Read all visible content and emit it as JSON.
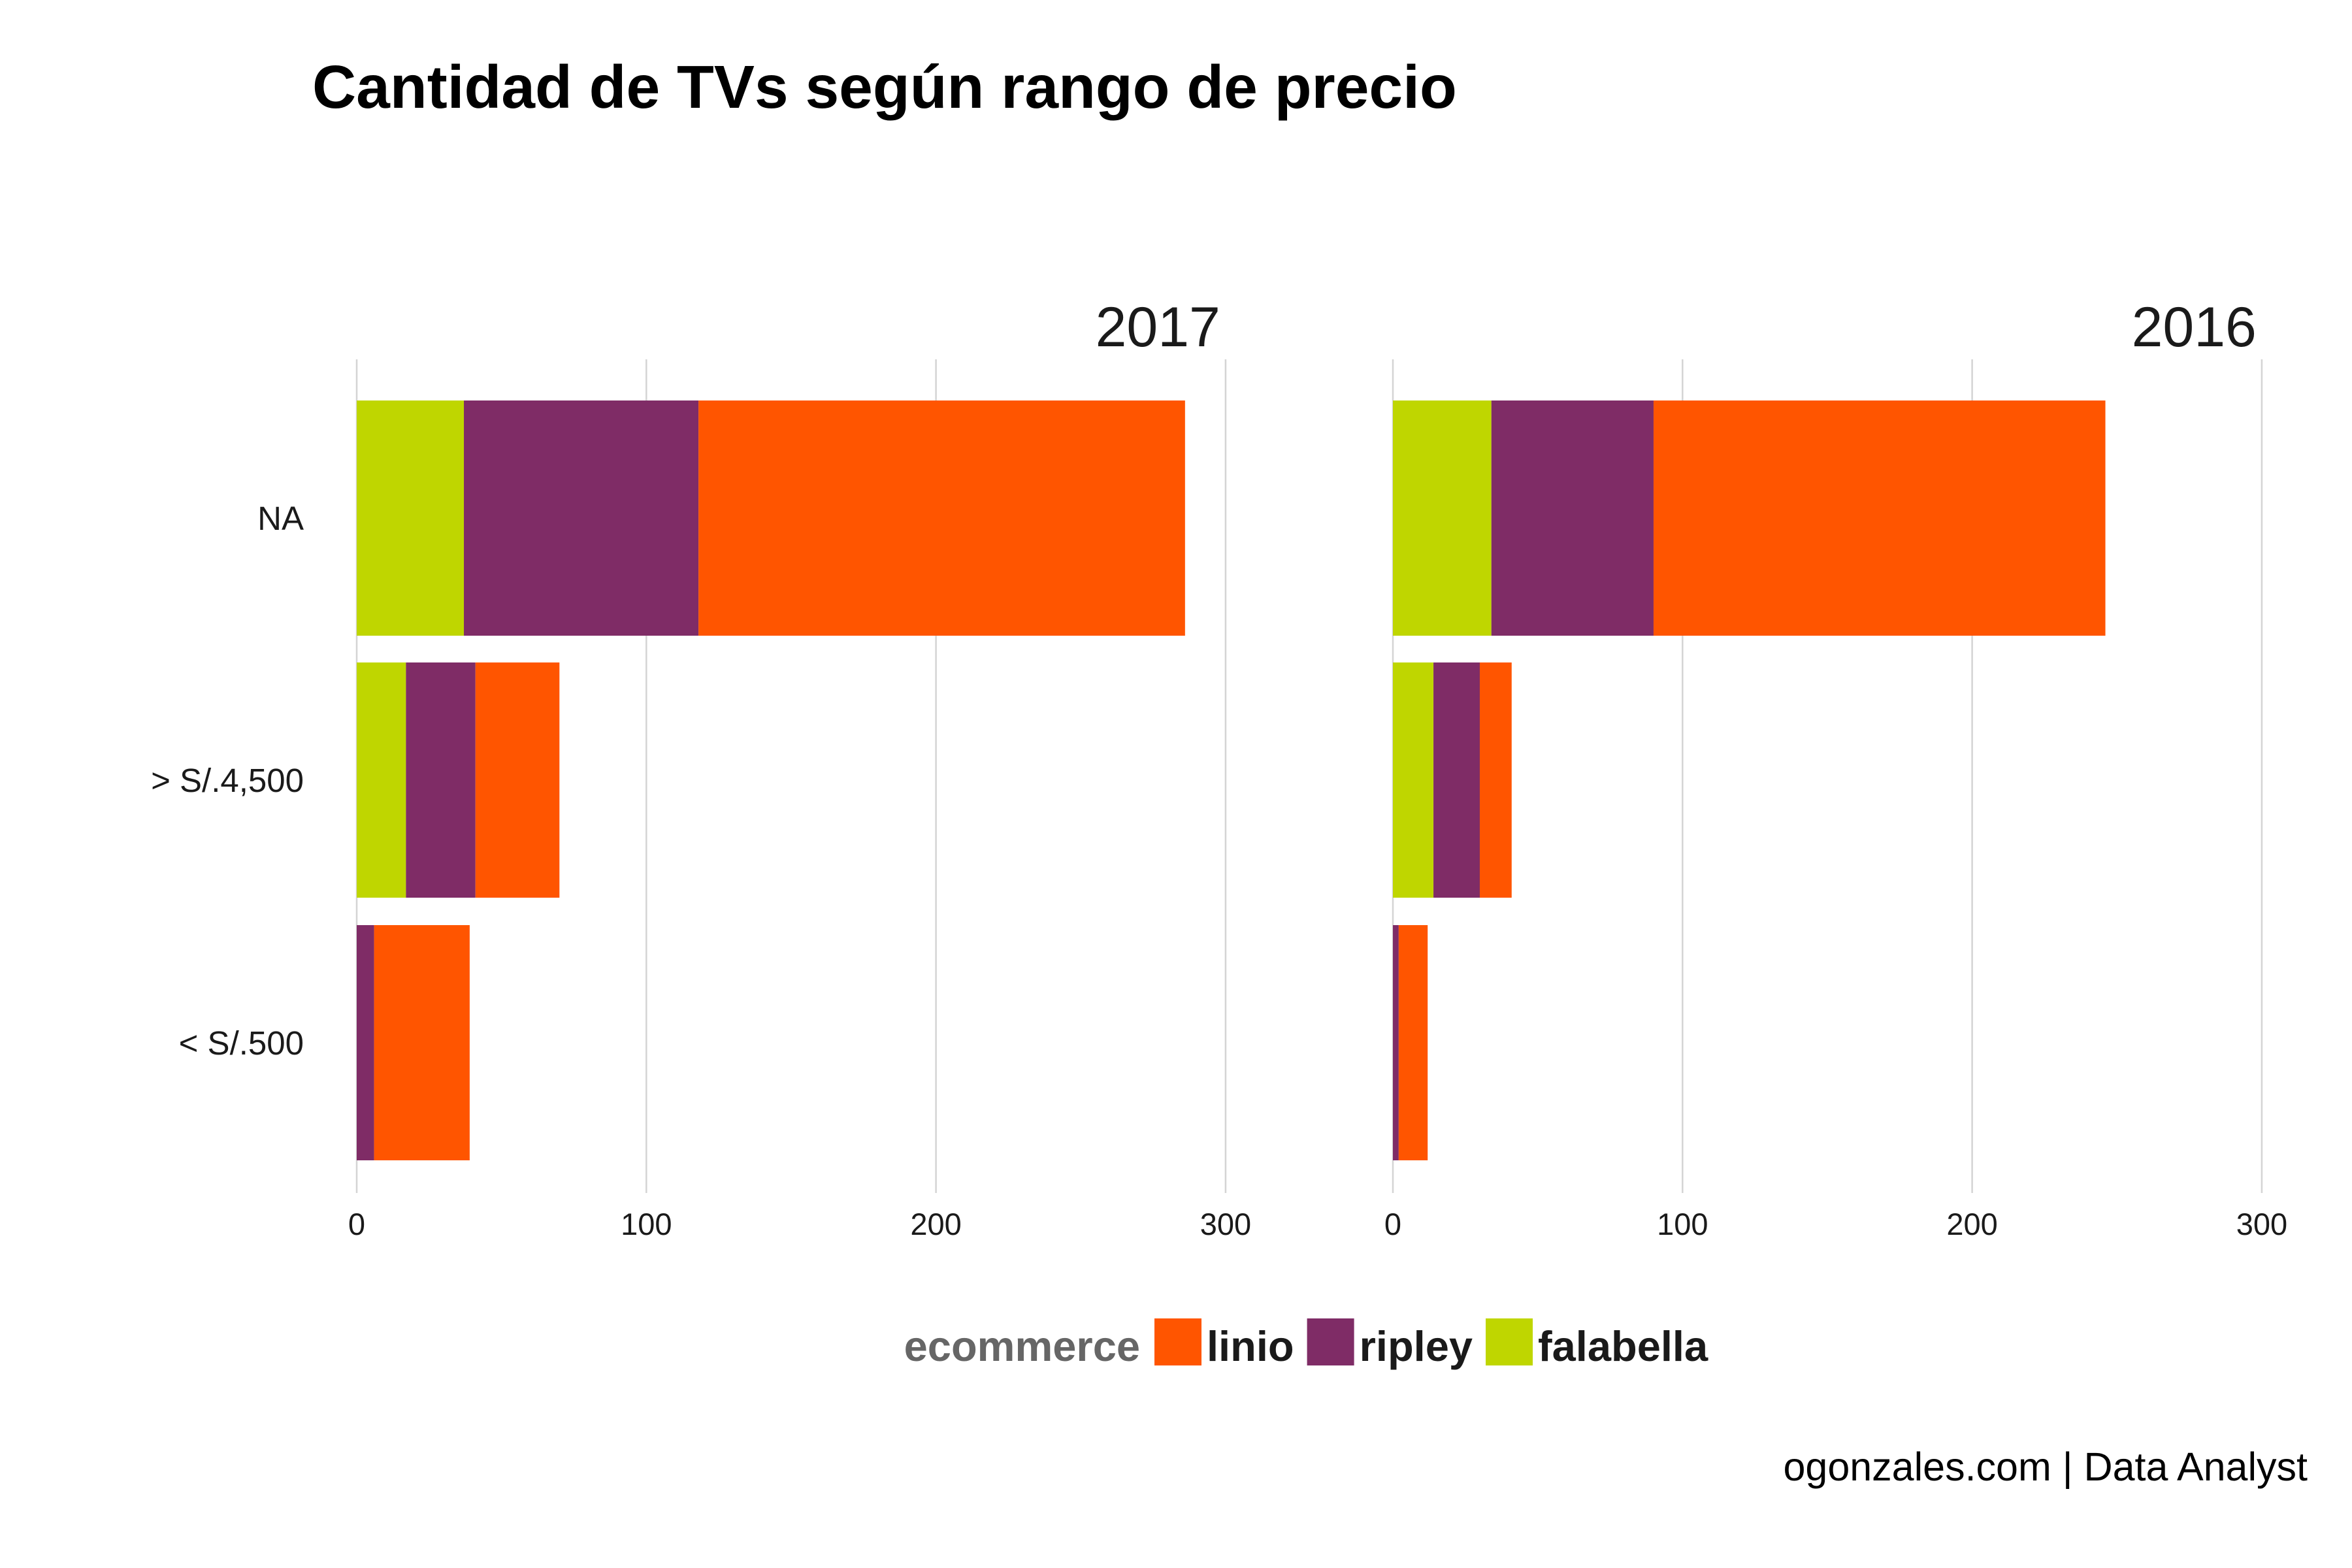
{
  "chart_data": {
    "type": "bar",
    "orientation": "horizontal",
    "stacked": true,
    "title": "Cantidad de TVs según rango de precio",
    "caption": "ogonzales.com | Data Analyst",
    "categories": [
      "NA",
      "> S/.4,500",
      "< S/.500"
    ],
    "xlim": [
      0,
      300
    ],
    "xticks": [
      0,
      100,
      200,
      300
    ],
    "grid": "vertical",
    "legend": {
      "title": "ecommerce",
      "placement": "bottom",
      "entries": [
        {
          "name": "linio",
          "color": "#FF5500"
        },
        {
          "name": "ripley",
          "color": "#7F2C66"
        },
        {
          "name": "falabella",
          "color": "#BFD600"
        }
      ]
    },
    "stack_order": [
      "falabella",
      "ripley",
      "linio"
    ],
    "panels": [
      {
        "title": "2017",
        "series": [
          {
            "name": "falabella",
            "values": [
              37,
              17,
              0
            ]
          },
          {
            "name": "ripley",
            "values": [
              81,
              24,
              6
            ]
          },
          {
            "name": "linio",
            "values": [
              168,
              29,
              33
            ]
          }
        ]
      },
      {
        "title": "2016",
        "series": [
          {
            "name": "falabella",
            "values": [
              34,
              14,
              0
            ]
          },
          {
            "name": "ripley",
            "values": [
              56,
              16,
              2
            ]
          },
          {
            "name": "linio",
            "values": [
              156,
              11,
              10
            ]
          }
        ]
      }
    ]
  }
}
